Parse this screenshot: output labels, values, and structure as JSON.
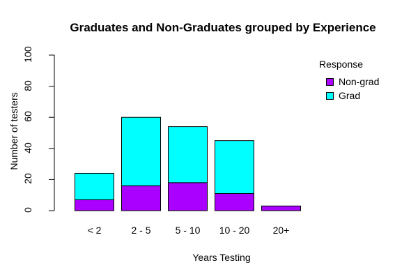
{
  "chart_data": {
    "type": "bar",
    "stacked": true,
    "title": "Graduates and Non-Graduates grouped by Experience",
    "xlabel": "Years Testing",
    "ylabel": "Number of testers",
    "categories": [
      "< 2",
      "2 - 5",
      "5 - 10",
      "10 - 20",
      "20+"
    ],
    "series": [
      {
        "name": "Non-grad",
        "color": "#AA00FF",
        "values": [
          7,
          16,
          18,
          11,
          3
        ]
      },
      {
        "name": "Grad",
        "color": "#00FFFF",
        "values": [
          17,
          44,
          36,
          34,
          0
        ]
      }
    ],
    "totals": [
      24,
      60,
      54,
      45,
      3
    ],
    "ylim": [
      0,
      100
    ],
    "yticks": [
      0,
      20,
      40,
      60,
      80,
      100
    ],
    "grid": false,
    "legend": {
      "title": "Response",
      "position": "top-right",
      "entries": [
        "Non-grad",
        "Grad"
      ]
    }
  }
}
